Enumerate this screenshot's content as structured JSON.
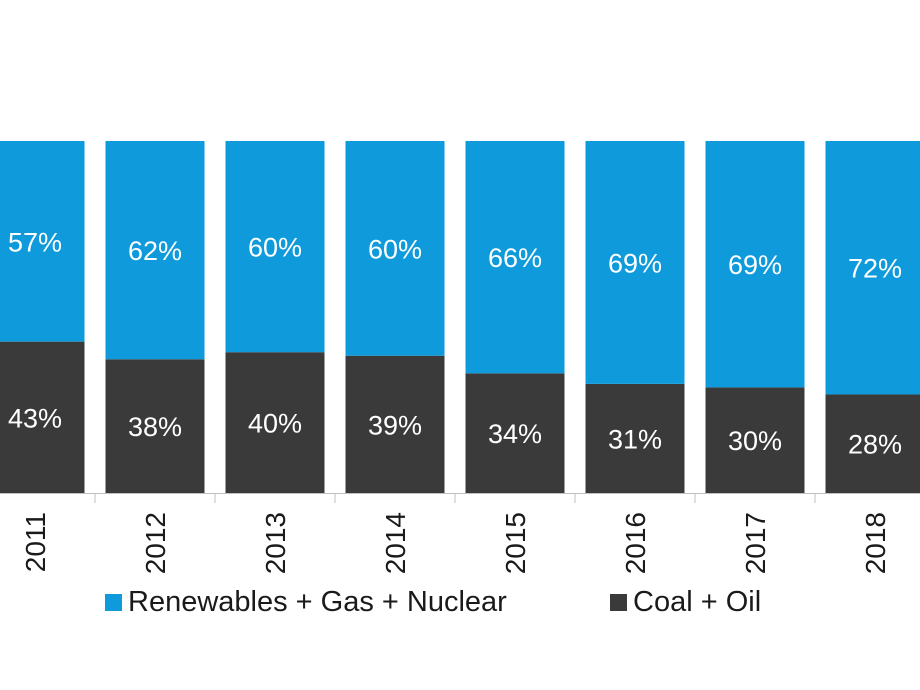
{
  "chart_data": {
    "type": "bar",
    "stacked": true,
    "percent_stacked": true,
    "categories": [
      "2011",
      "2012",
      "2013",
      "2014",
      "2015",
      "2016",
      "2017",
      "2018"
    ],
    "series": [
      {
        "name": "Coal + Oil",
        "values": [
          43,
          38,
          40,
          39,
          34,
          31,
          30,
          28
        ],
        "labels": [
          "43%",
          "38%",
          "40%",
          "39%",
          "34%",
          "31%",
          "30%",
          "28%"
        ],
        "color": "#3a3a3a"
      },
      {
        "name": "Renewables + Gas + Nuclear",
        "values": [
          57,
          62,
          60,
          60,
          66,
          69,
          69,
          72
        ],
        "labels": [
          "57%",
          "62%",
          "60%",
          "60%",
          "66%",
          "69%",
          "69%",
          "72%"
        ],
        "color": "#0f9bdb"
      }
    ],
    "title": "",
    "xlabel": "",
    "ylabel": "",
    "ylim": [
      0,
      100
    ],
    "grid": false,
    "legend_position": "bottom",
    "x_tick_rotation": "vertical"
  },
  "legend": {
    "items": [
      {
        "label": "Renewables + Gas + Nuclear",
        "color": "#0f9bdb"
      },
      {
        "label": "Coal + Oil",
        "color": "#3a3a3a"
      }
    ]
  }
}
